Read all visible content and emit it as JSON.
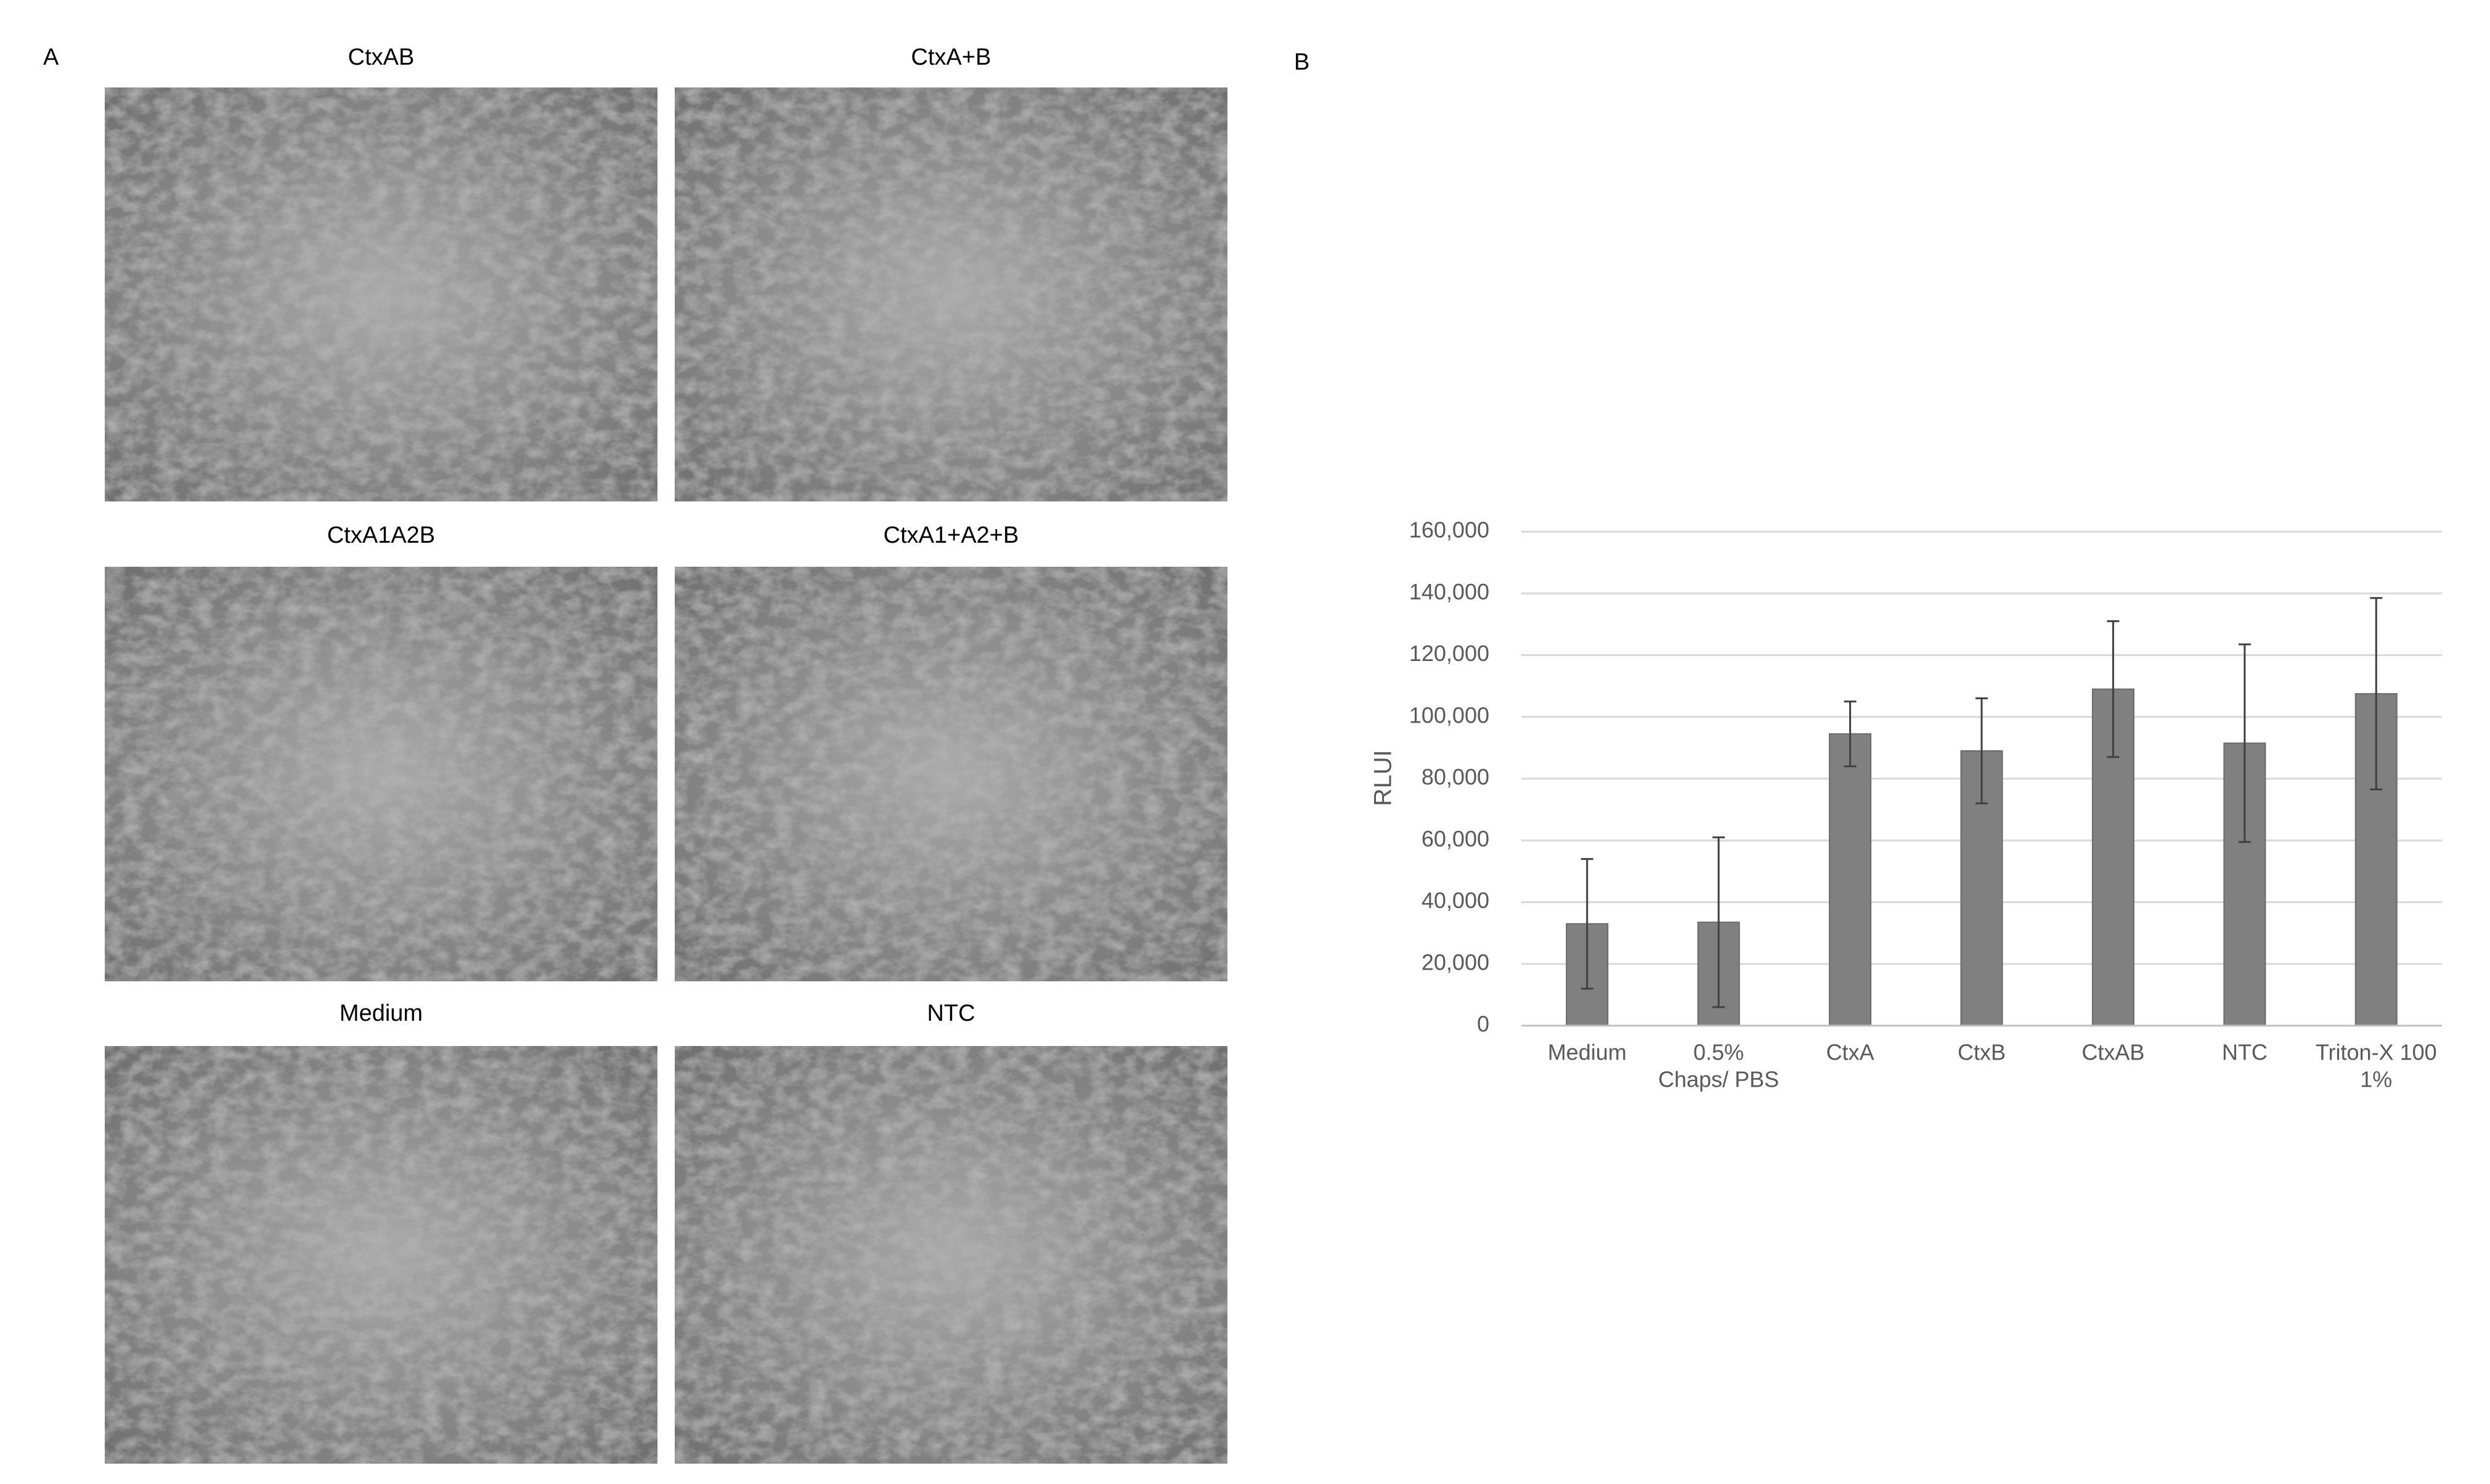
{
  "panel_a": {
    "label": "A",
    "images": [
      {
        "title": "CtxAB"
      },
      {
        "title": "CtxA+B"
      },
      {
        "title": "CtxA1A2B"
      },
      {
        "title": "CtxA1+A2+B"
      },
      {
        "title": "Medium"
      },
      {
        "title": "NTC"
      }
    ]
  },
  "chart_data": {
    "type": "bar",
    "panel_label": "B",
    "y_label": "RLUI",
    "categories": [
      "Medium",
      [
        "0.5%",
        "Chaps/ PBS"
      ],
      "CtxA",
      "CtxB",
      "CtxAB",
      "NTC",
      [
        "Triton-X 100",
        "1%"
      ]
    ],
    "values": [
      33000,
      33500,
      94500,
      89000,
      109000,
      91500,
      107500
    ],
    "errors": [
      21000,
      27500,
      10500,
      17000,
      22000,
      32000,
      31000
    ],
    "color": "#808080",
    "ylim": [
      0,
      160000
    ],
    "yticks": [
      0,
      {
        "value": 20000,
        "label": "20,000"
      },
      {
        "value": 40000,
        "label": "40,000"
      },
      {
        "value": 60000,
        "label": "60,000"
      },
      {
        "value": 80000,
        "label": "80,000"
      },
      {
        "value": 100000,
        "label": "100,000"
      },
      {
        "value": 120000,
        "label": "120,000"
      },
      {
        "value": 140000,
        "label": "140,000"
      },
      {
        "value": 160000,
        "label": "160,000"
      }
    ],
    "grid": true
  }
}
